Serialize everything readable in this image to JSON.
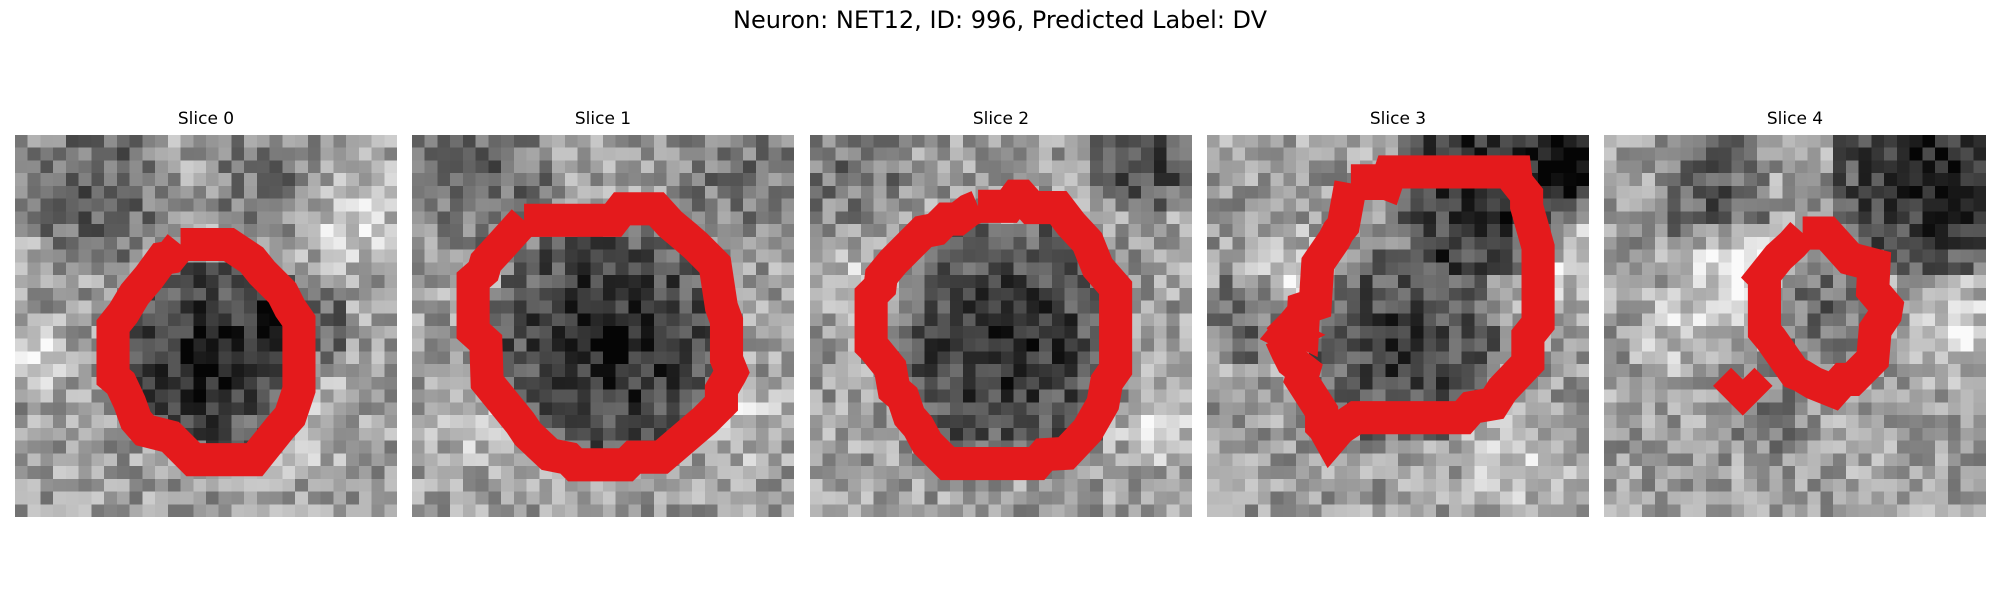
{
  "figure": {
    "title": "Neuron: NET12, ID: 996, Predicted Label: DV",
    "contour_color": "#e41a1c"
  },
  "panels": [
    {
      "title": "Slice 0"
    },
    {
      "title": "Slice 1"
    },
    {
      "title": "Slice 2"
    },
    {
      "title": "Slice 3"
    },
    {
      "title": "Slice 4"
    }
  ]
}
